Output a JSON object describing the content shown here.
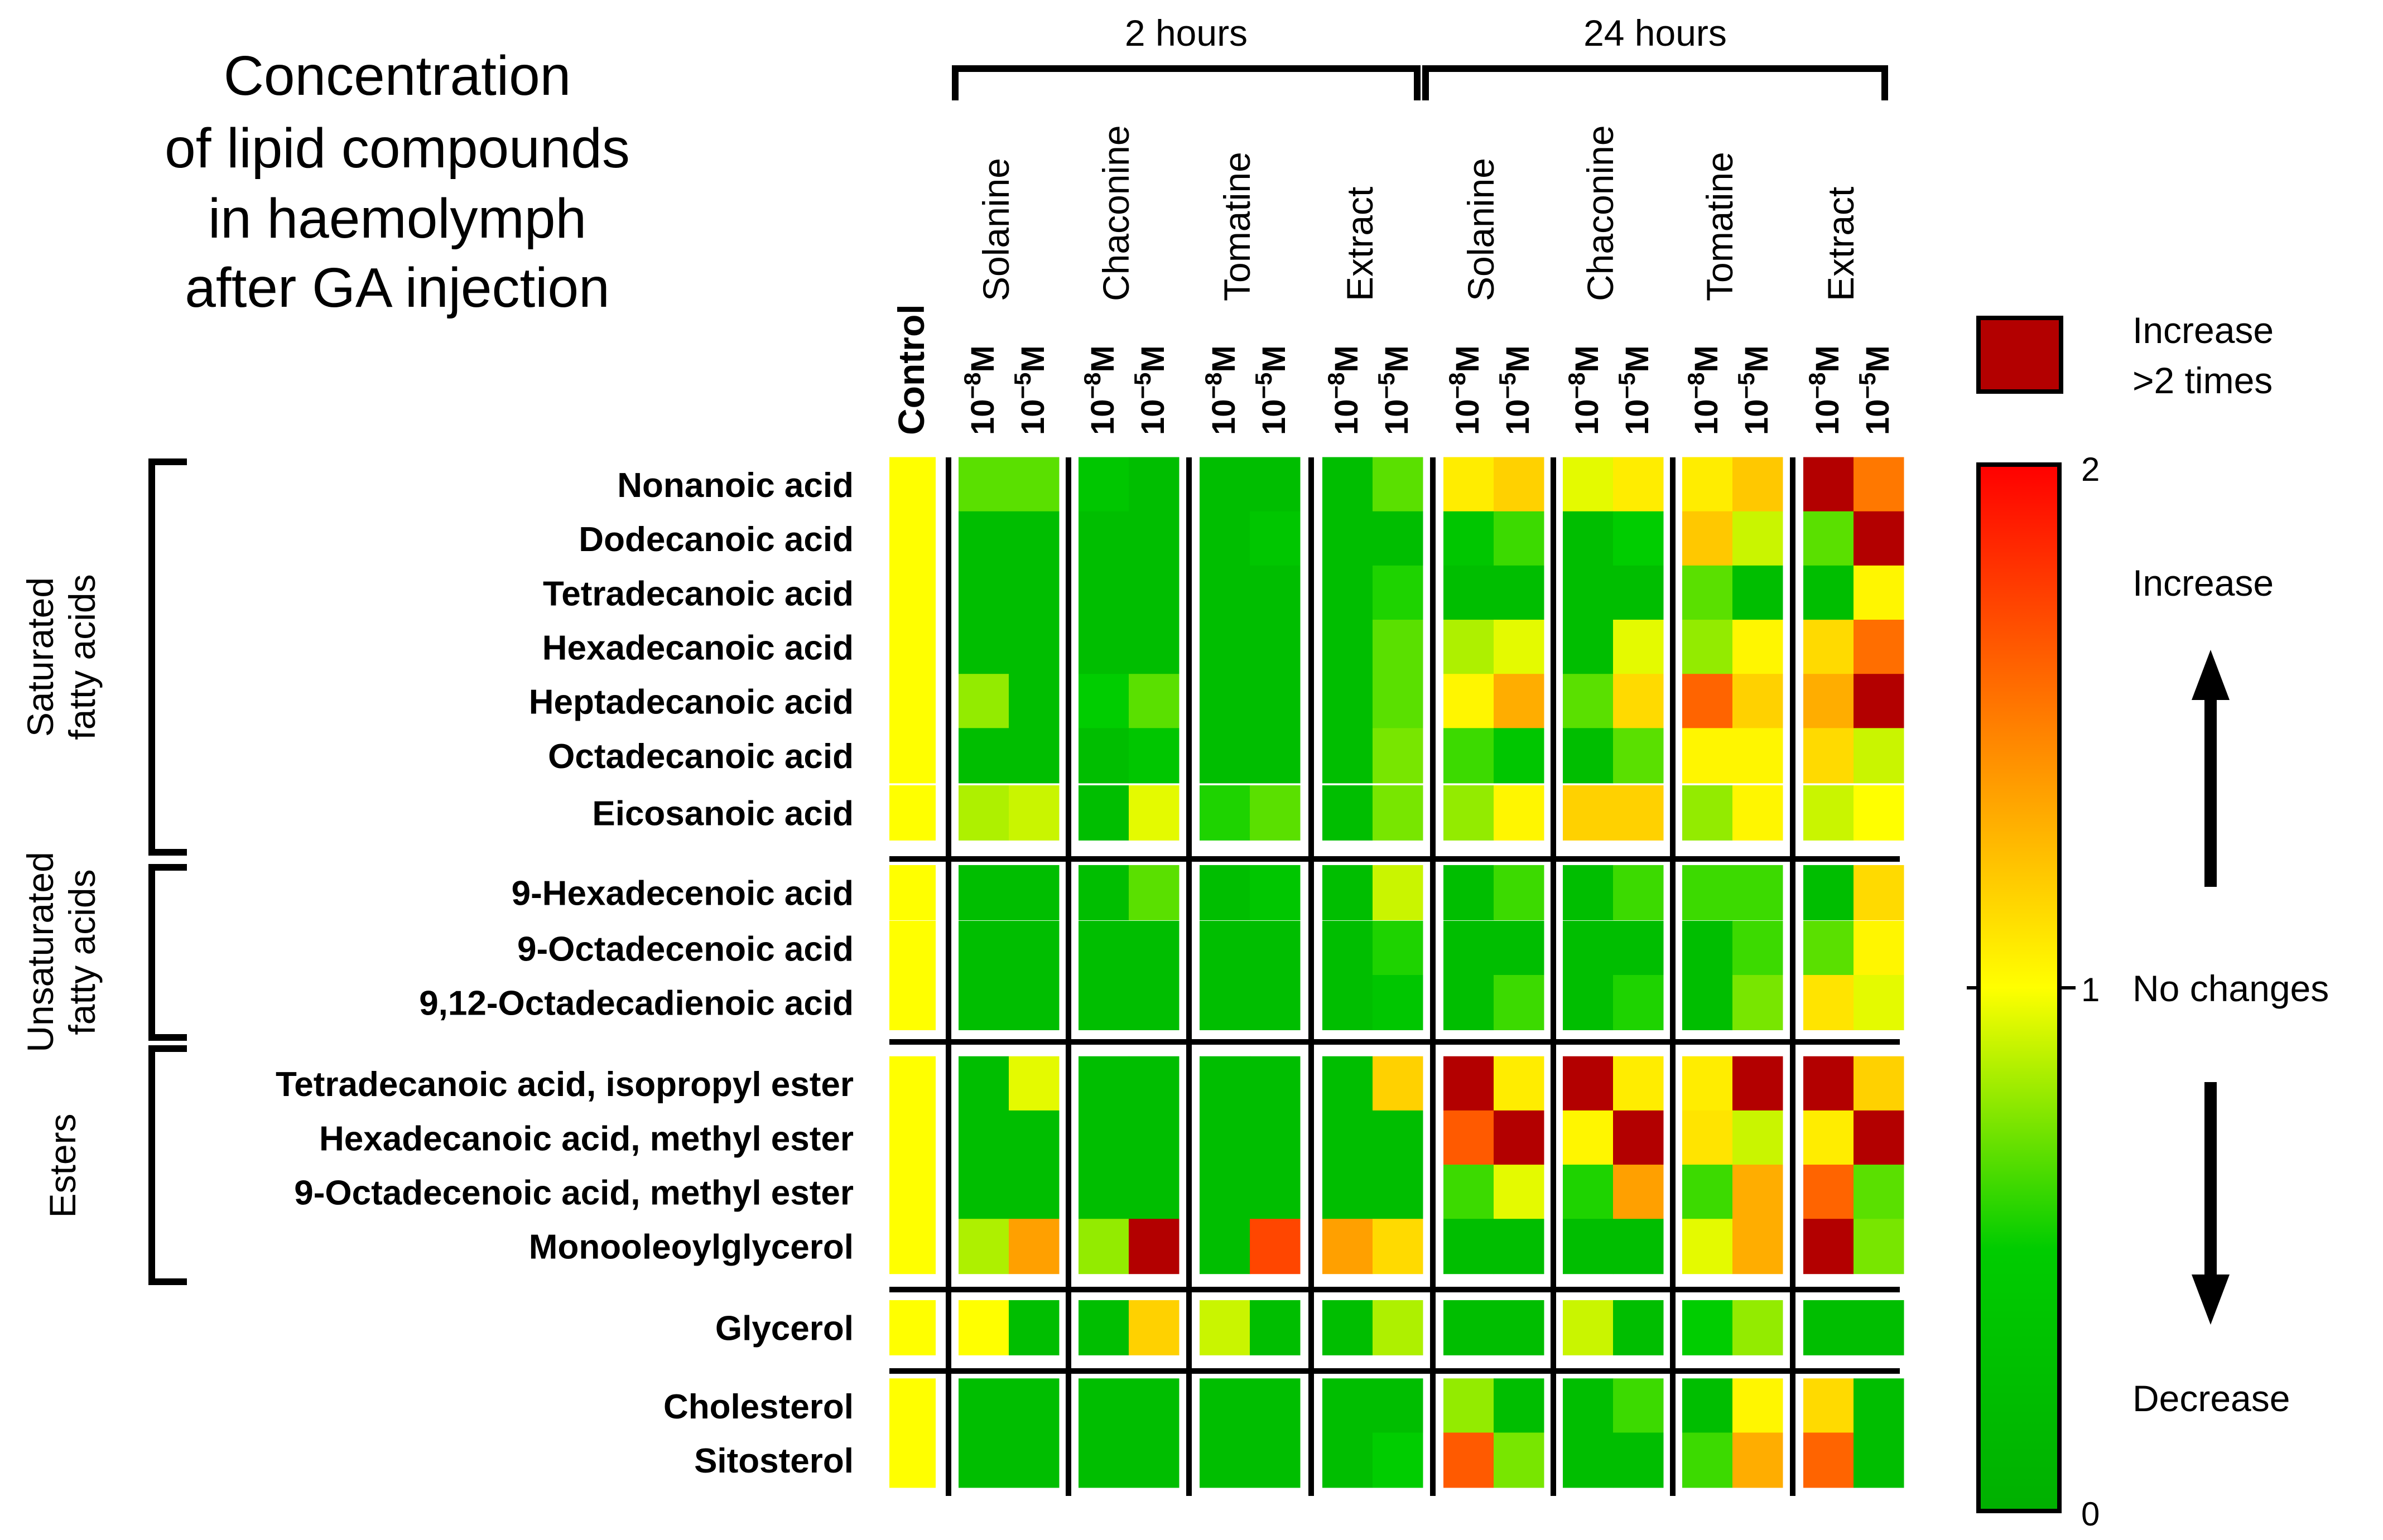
{
  "chart_data": {
    "type": "heatmap",
    "title": "Concentration of lipid compounds in haemolymph after GA injection",
    "title_lines": [
      "Concentration",
      "of lipid compounds",
      "in haemolymph",
      "after GA injection"
    ],
    "time_groups": [
      "2 hours",
      "24 hours"
    ],
    "treatments": [
      "Solanine",
      "Chaconine",
      "Tomatine",
      "Extract",
      "Solanine",
      "Chaconine",
      "Tomatine",
      "Extract"
    ],
    "control_label": "Control",
    "concentration_base": "10",
    "concentration_unit": "M",
    "concentrations": [
      "−8",
      "−5"
    ],
    "row_groups": [
      {
        "name": "Saturated fatty acids",
        "lines": [
          "Saturated",
          "fatty acids"
        ]
      },
      {
        "name": "Unsaturated fatty acids",
        "lines": [
          "Unsaturated",
          "fatty acids"
        ]
      },
      {
        "name": "Esters",
        "lines": [
          "Esters"
        ]
      }
    ],
    "compounds": [
      "Nonanoic acid",
      "Dodecanoic acid",
      "Tetradecanoic acid",
      "Hexadecanoic acid",
      "Heptadecanoic acid",
      "Octadecanoic acid",
      "Eicosanoic acid",
      "9-Hexadecenoic acid",
      "9-Octadecenoic acid",
      "9,12-Octadecadienoic acid",
      "Tetradecanoic acid, isopropyl ester",
      "Hexadecanoic acid, methyl ester",
      "9-Octadecenoic acid, methyl ester",
      "Monooleoylglycerol",
      "Glycerol",
      "Cholesterol",
      "Sitosterol"
    ],
    "values": [
      [
        1.0,
        0.7,
        0.7,
        0.5,
        0.4,
        0.4,
        0.4,
        0.4,
        0.7,
        1.1,
        1.25,
        0.95,
        1.1,
        1.1,
        1.3,
        2.1,
        1.6
      ],
      [
        1.0,
        0.4,
        0.4,
        0.4,
        0.4,
        0.4,
        0.5,
        0.4,
        0.4,
        0.5,
        0.65,
        0.4,
        0.55,
        1.3,
        0.9,
        0.7,
        2.1
      ],
      [
        1.0,
        0.4,
        0.4,
        0.4,
        0.4,
        0.4,
        0.4,
        0.4,
        0.6,
        0.4,
        0.45,
        0.4,
        0.45,
        0.7,
        0.4,
        0.45,
        1.05
      ],
      [
        1.0,
        0.4,
        0.4,
        0.4,
        0.4,
        0.4,
        0.4,
        0.4,
        0.7,
        0.85,
        0.95,
        0.4,
        0.95,
        0.8,
        1.05,
        1.2,
        1.65
      ],
      [
        1.0,
        0.8,
        0.4,
        0.55,
        0.7,
        0.4,
        0.4,
        0.4,
        0.7,
        1.05,
        1.4,
        0.7,
        1.2,
        1.7,
        1.25,
        1.4,
        2.1
      ],
      [
        1.0,
        0.4,
        0.4,
        0.4,
        0.5,
        0.4,
        0.4,
        0.4,
        0.75,
        0.65,
        0.5,
        0.4,
        0.7,
        1.05,
        1.05,
        1.2,
        0.9
      ],
      [
        1.0,
        0.85,
        0.9,
        0.4,
        0.95,
        0.6,
        0.7,
        0.4,
        0.75,
        0.8,
        1.05,
        1.25,
        1.25,
        0.8,
        1.05,
        0.9,
        1.0
      ],
      [
        1.0,
        0.4,
        0.4,
        0.4,
        0.7,
        0.4,
        0.5,
        0.4,
        0.9,
        0.45,
        0.65,
        0.4,
        0.65,
        0.65,
        0.65,
        0.45,
        1.2
      ],
      [
        1.0,
        0.4,
        0.4,
        0.4,
        0.4,
        0.4,
        0.4,
        0.4,
        0.6,
        0.4,
        0.4,
        0.4,
        0.45,
        0.4,
        0.65,
        0.7,
        1.05
      ],
      [
        1.0,
        0.4,
        0.4,
        0.4,
        0.4,
        0.4,
        0.4,
        0.4,
        0.5,
        0.45,
        0.65,
        0.4,
        0.6,
        0.45,
        0.75,
        1.15,
        0.95
      ],
      [
        1.0,
        0.45,
        0.95,
        0.4,
        0.4,
        0.4,
        0.4,
        0.4,
        1.25,
        2.1,
        1.1,
        2.1,
        1.1,
        1.1,
        2.1,
        2.1,
        1.25
      ],
      [
        1.0,
        0.4,
        0.4,
        0.4,
        0.4,
        0.4,
        0.4,
        0.4,
        0.4,
        1.75,
        2.1,
        1.05,
        2.1,
        1.15,
        0.9,
        1.1,
        2.1
      ],
      [
        1.0,
        0.4,
        0.4,
        0.4,
        0.4,
        0.4,
        0.45,
        0.4,
        0.4,
        0.65,
        0.95,
        0.6,
        1.45,
        0.65,
        1.4,
        1.7,
        0.7
      ],
      [
        1.0,
        0.85,
        1.45,
        0.8,
        2.1,
        0.4,
        1.85,
        1.45,
        1.2,
        0.45,
        0.45,
        0.45,
        0.45,
        0.95,
        1.4,
        2.1,
        0.75
      ],
      [
        1.0,
        1.0,
        0.45,
        0.4,
        1.25,
        0.9,
        0.45,
        0.45,
        0.85,
        0.4,
        0.4,
        0.9,
        0.45,
        0.55,
        0.8,
        0.45,
        0.45
      ],
      [
        1.0,
        0.4,
        0.4,
        0.4,
        0.4,
        0.4,
        0.4,
        0.4,
        0.4,
        0.8,
        0.4,
        0.45,
        0.65,
        0.45,
        1.05,
        1.2,
        0.45
      ],
      [
        1.0,
        0.4,
        0.4,
        0.4,
        0.4,
        0.4,
        0.4,
        0.4,
        0.55,
        1.75,
        0.75,
        0.4,
        0.4,
        0.65,
        1.4,
        1.7,
        0.45
      ]
    ],
    "colorbar": {
      "min": 0,
      "mid": 1,
      "max": 2,
      "tick_labels": [
        "2",
        "1",
        "0"
      ]
    },
    "legend": {
      "swatch_label_lines": [
        "Increase",
        ">2 times"
      ],
      "increase": "Increase",
      "no_changes": "No changes",
      "decrease": "Decrease"
    },
    "colors": {
      "max": "#b30000",
      "red": "#ff2a00",
      "orange": "#ff7a00",
      "yellow": "#ffff00",
      "green": "#00cc00"
    }
  }
}
